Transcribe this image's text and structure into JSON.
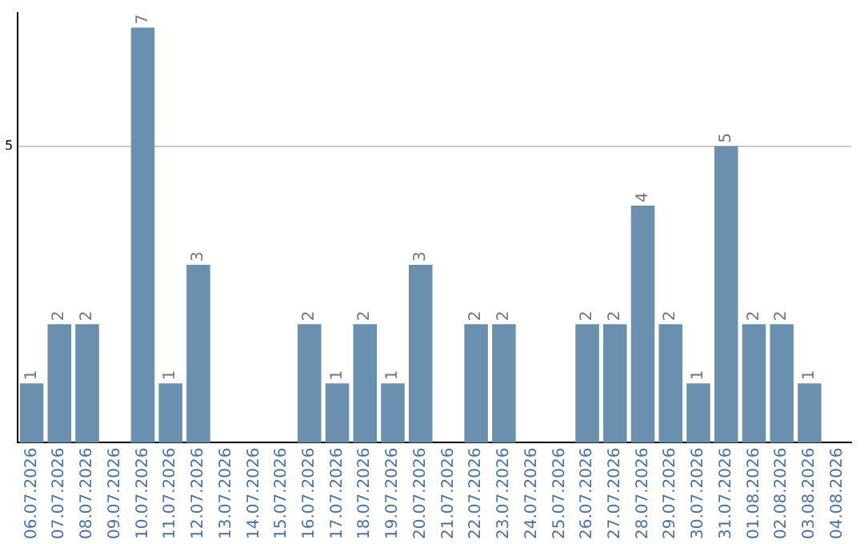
{
  "chart_data": {
    "type": "bar",
    "categories": [
      "06.07.2026",
      "07.07.2026",
      "08.07.2026",
      "09.07.2026",
      "10.07.2026",
      "11.07.2026",
      "12.07.2026",
      "13.07.2026",
      "14.07.2026",
      "15.07.2026",
      "16.07.2026",
      "17.07.2026",
      "18.07.2026",
      "19.07.2026",
      "20.07.2026",
      "21.07.2026",
      "22.07.2026",
      "23.07.2026",
      "24.07.2026",
      "25.07.2026",
      "26.07.2026",
      "27.07.2026",
      "28.07.2026",
      "29.07.2026",
      "30.07.2026",
      "31.07.2026",
      "01.08.2026",
      "02.08.2026",
      "03.08.2026",
      "04.08.2026"
    ],
    "values": [
      1,
      2,
      2,
      0,
      7,
      1,
      3,
      0,
      0,
      0,
      2,
      1,
      2,
      1,
      3,
      0,
      2,
      2,
      0,
      0,
      2,
      2,
      4,
      2,
      1,
      5,
      2,
      2,
      1,
      0
    ],
    "value_labels": [
      "1",
      "2",
      "2",
      null,
      "7",
      "1",
      "3",
      null,
      null,
      null,
      "2",
      "1",
      "2",
      "1",
      "3",
      null,
      "2",
      "2",
      null,
      null,
      "2",
      "2",
      "4",
      "2",
      "1",
      "5",
      "2",
      "2",
      "1",
      null
    ],
    "color": "#6b8fae",
    "ylim": [
      0,
      7.25
    ],
    "yticks": [
      5
    ],
    "grid": "y",
    "legend": false
  }
}
